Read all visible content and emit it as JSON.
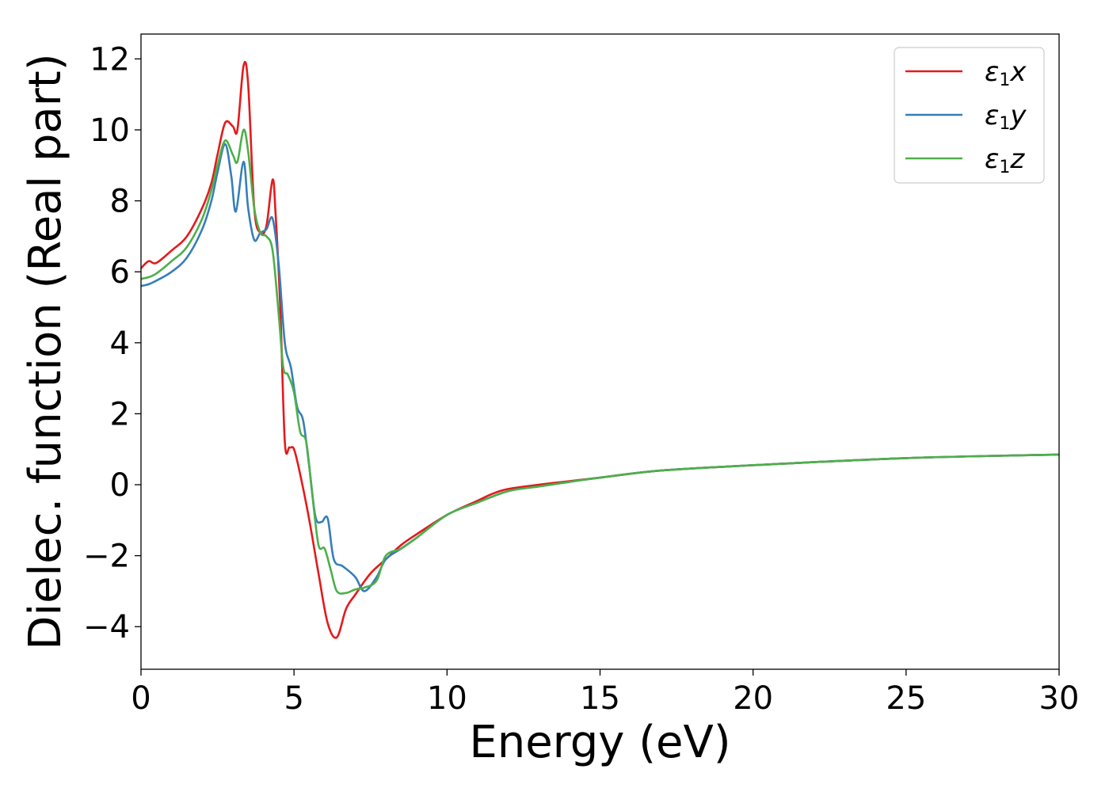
{
  "chart_data": {
    "type": "line",
    "title": "",
    "xlabel": "Energy (eV)",
    "ylabel": "Dielec. function (Real part)",
    "xlim": [
      0,
      30
    ],
    "ylim": [
      -5.2,
      12.7
    ],
    "xticks": [
      0,
      5,
      10,
      15,
      20,
      25,
      30
    ],
    "xtick_labels": [
      "0",
      "5",
      "10",
      "15",
      "20",
      "25",
      "30"
    ],
    "yticks": [
      -4,
      -2,
      0,
      2,
      4,
      6,
      8,
      10,
      12
    ],
    "ytick_labels": [
      "−4",
      "−2",
      "0",
      "2",
      "4",
      "6",
      "8",
      "10",
      "12"
    ],
    "grid": false,
    "legend_position": "top-right",
    "series": [
      {
        "name": "ε",
        "sub": "1",
        "var": "x",
        "color": "#e41a1c",
        "x": [
          0,
          0.25,
          0.5,
          1.0,
          1.5,
          2.0,
          2.3,
          2.5,
          2.75,
          3.0,
          3.15,
          3.35,
          3.5,
          3.7,
          3.9,
          4.1,
          4.3,
          4.4,
          4.55,
          4.7,
          4.85,
          5.0,
          5.2,
          5.5,
          5.8,
          6.1,
          6.4,
          6.7,
          7.0,
          7.5,
          8.0,
          8.5,
          9.0,
          10.0,
          11.0,
          11.5,
          12.0,
          13.0,
          14.0,
          15.0,
          17.0,
          20.0,
          25.0,
          30.0
        ],
        "y": [
          6.1,
          6.3,
          6.25,
          6.6,
          7.0,
          7.8,
          8.5,
          9.3,
          10.2,
          10.1,
          10.0,
          11.8,
          11.3,
          7.8,
          7.1,
          7.3,
          8.6,
          7.6,
          5.0,
          1.2,
          1.05,
          1.0,
          0.3,
          -1.0,
          -2.5,
          -3.9,
          -4.3,
          -3.5,
          -3.1,
          -2.5,
          -2.1,
          -1.7,
          -1.4,
          -0.85,
          -0.45,
          -0.25,
          -0.12,
          0.0,
          0.1,
          0.2,
          0.4,
          0.55,
          0.75,
          0.85
        ]
      },
      {
        "name": "ε",
        "sub": "1",
        "var": "y",
        "color": "#377eb8",
        "x": [
          0,
          0.25,
          0.5,
          1.0,
          1.5,
          2.0,
          2.3,
          2.5,
          2.75,
          2.95,
          3.1,
          3.35,
          3.5,
          3.7,
          3.9,
          4.1,
          4.3,
          4.5,
          4.7,
          4.9,
          5.1,
          5.3,
          5.5,
          5.7,
          5.9,
          6.1,
          6.3,
          6.6,
          7.0,
          7.3,
          7.7,
          8.0,
          8.5,
          9.0,
          10.0,
          11.0,
          12.0,
          13.0,
          14.0,
          15.0,
          17.0,
          20.0,
          25.0,
          30.0
        ],
        "y": [
          5.6,
          5.65,
          5.75,
          6.0,
          6.4,
          7.2,
          8.0,
          8.8,
          9.6,
          8.7,
          7.7,
          9.1,
          7.8,
          6.9,
          7.1,
          7.2,
          7.5,
          6.2,
          4.0,
          3.3,
          2.2,
          1.8,
          0.5,
          -0.9,
          -1.05,
          -0.95,
          -2.1,
          -2.3,
          -2.6,
          -3.0,
          -2.6,
          -2.1,
          -1.8,
          -1.5,
          -0.85,
          -0.5,
          -0.18,
          -0.05,
          0.08,
          0.2,
          0.4,
          0.55,
          0.75,
          0.85
        ]
      },
      {
        "name": "ε",
        "sub": "1",
        "var": "z",
        "color": "#4daf4a",
        "x": [
          0,
          0.25,
          0.5,
          1.0,
          1.5,
          2.0,
          2.3,
          2.5,
          2.75,
          3.0,
          3.15,
          3.35,
          3.5,
          3.7,
          3.9,
          4.1,
          4.3,
          4.5,
          4.65,
          4.8,
          5.0,
          5.2,
          5.4,
          5.6,
          5.8,
          6.0,
          6.2,
          6.4,
          6.7,
          7.0,
          7.3,
          7.7,
          8.0,
          8.5,
          9.0,
          10.0,
          11.0,
          12.0,
          13.0,
          14.0,
          15.0,
          17.0,
          20.0,
          25.0,
          30.0
        ],
        "y": [
          5.8,
          5.85,
          5.95,
          6.3,
          6.7,
          7.5,
          8.3,
          9.0,
          9.7,
          9.3,
          9.1,
          10.0,
          9.4,
          7.8,
          7.1,
          7.0,
          6.6,
          4.8,
          3.3,
          3.1,
          2.6,
          1.5,
          1.2,
          -0.3,
          -1.7,
          -1.8,
          -2.4,
          -3.0,
          -3.05,
          -2.95,
          -2.9,
          -2.7,
          -2.0,
          -1.8,
          -1.5,
          -0.85,
          -0.5,
          -0.18,
          -0.05,
          0.08,
          0.2,
          0.4,
          0.55,
          0.75,
          0.85
        ]
      }
    ]
  }
}
